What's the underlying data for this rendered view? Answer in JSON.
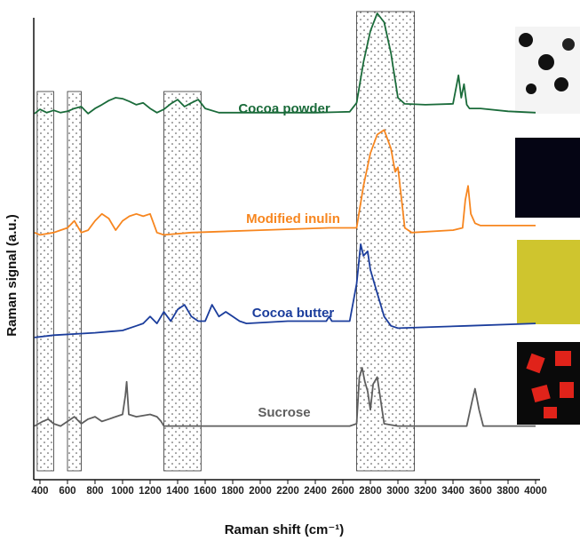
{
  "chart_data": {
    "type": "line",
    "xlabel": "Raman shift (cm⁻¹)",
    "ylabel": "Raman signal (a.u.)",
    "xlim": [
      355,
      4000
    ],
    "ylim": [
      0,
      100
    ],
    "xticks": [
      400,
      600,
      800,
      1000,
      1200,
      1400,
      1600,
      1800,
      2000,
      2200,
      2400,
      2600,
      2800,
      3000,
      3200,
      3400,
      3600,
      3800,
      4000
    ],
    "regions": [
      [
        380,
        500
      ],
      [
        600,
        700
      ],
      [
        1300,
        1570
      ],
      [
        2700,
        3120
      ]
    ],
    "series": [
      {
        "name": "Cocoa powder",
        "color": "#1a6b3a",
        "x": [
          360,
          400,
          450,
          500,
          550,
          600,
          650,
          700,
          750,
          800,
          850,
          900,
          950,
          1000,
          1050,
          1100,
          1150,
          1200,
          1250,
          1300,
          1350,
          1400,
          1450,
          1500,
          1550,
          1600,
          1700,
          2000,
          2400,
          2650,
          2700,
          2750,
          2800,
          2850,
          2900,
          2950,
          3000,
          3050,
          3200,
          3400,
          3440,
          3460,
          3480,
          3500,
          3520,
          3600,
          3800,
          4000
        ],
        "values": [
          78.5,
          79.4,
          78.7,
          79.2,
          78.7,
          79.0,
          79.6,
          80.0,
          78.5,
          79.6,
          80.4,
          81.3,
          81.9,
          81.7,
          81.1,
          80.4,
          80.8,
          79.6,
          78.7,
          79.4,
          80.6,
          81.5,
          80.0,
          80.8,
          81.5,
          79.6,
          78.7,
          78.7,
          78.7,
          78.9,
          80.8,
          89.5,
          96.2,
          100,
          98.1,
          91.4,
          81.9,
          80.6,
          80.4,
          80.6,
          86.7,
          81.9,
          84.8,
          80.4,
          79.6,
          79.6,
          79.0,
          78.7
        ]
      },
      {
        "name": "Modified inulin",
        "color": "#f7861f",
        "x": [
          360,
          400,
          500,
          550,
          600,
          650,
          700,
          750,
          800,
          850,
          900,
          950,
          1000,
          1050,
          1100,
          1150,
          1200,
          1250,
          1300,
          1500,
          2000,
          2500,
          2700,
          2750,
          2800,
          2850,
          2900,
          2950,
          2980,
          3000,
          3050,
          3100,
          3400,
          3470,
          3490,
          3510,
          3530,
          3560,
          3600,
          4000
        ],
        "values": [
          53,
          52.5,
          53,
          53.5,
          54,
          55.5,
          53,
          53.5,
          55.5,
          57,
          56,
          53.5,
          55.5,
          56.5,
          57,
          56.5,
          57,
          53,
          52.5,
          53,
          53.5,
          54,
          54,
          63,
          70,
          74,
          75,
          71,
          66,
          67,
          54,
          53,
          53.5,
          54,
          60,
          63,
          57,
          55,
          54.5,
          54.5
        ]
      },
      {
        "name": "Cocoa butter",
        "color": "#1b3d9c",
        "x": [
          360,
          500,
          800,
          1000,
          1100,
          1150,
          1200,
          1250,
          1300,
          1350,
          1400,
          1450,
          1500,
          1550,
          1600,
          1650,
          1700,
          1750,
          1800,
          1850,
          1900,
          2200,
          2480,
          2500,
          2520,
          2650,
          2700,
          2730,
          2750,
          2780,
          2800,
          2850,
          2900,
          2950,
          3000,
          3500,
          4000
        ],
        "values": [
          30.5,
          31,
          31.5,
          32,
          33,
          33.5,
          35,
          33.5,
          36,
          34,
          36.5,
          37.5,
          35,
          34,
          34,
          37.5,
          35,
          36,
          35,
          34,
          33.5,
          34,
          34,
          35,
          34,
          34,
          42,
          50.5,
          48,
          49,
          45,
          40,
          35,
          33,
          32.5,
          33,
          33.5
        ]
      },
      {
        "name": "Sucrose",
        "color": "#5e5e5e",
        "x": [
          360,
          420,
          460,
          500,
          550,
          600,
          650,
          700,
          750,
          800,
          850,
          900,
          950,
          1000,
          1020,
          1030,
          1045,
          1100,
          1200,
          1250,
          1280,
          1300,
          2000,
          2650,
          2700,
          2720,
          2740,
          2760,
          2780,
          2800,
          2820,
          2850,
          2880,
          2900,
          3000,
          3500,
          3540,
          3560,
          3590,
          3620,
          4000
        ],
        "values": [
          11.5,
          12.5,
          13,
          12,
          11.5,
          12.5,
          13.5,
          12,
          13,
          13.5,
          12.5,
          13,
          13.5,
          14,
          18,
          21,
          14,
          13.5,
          14,
          13.5,
          12.5,
          11.5,
          11.5,
          11.5,
          12,
          22,
          24,
          21,
          19,
          15,
          20.5,
          22,
          16,
          12,
          11.5,
          11.5,
          17,
          19.5,
          15,
          11.5,
          11.5
        ]
      }
    ]
  }
}
